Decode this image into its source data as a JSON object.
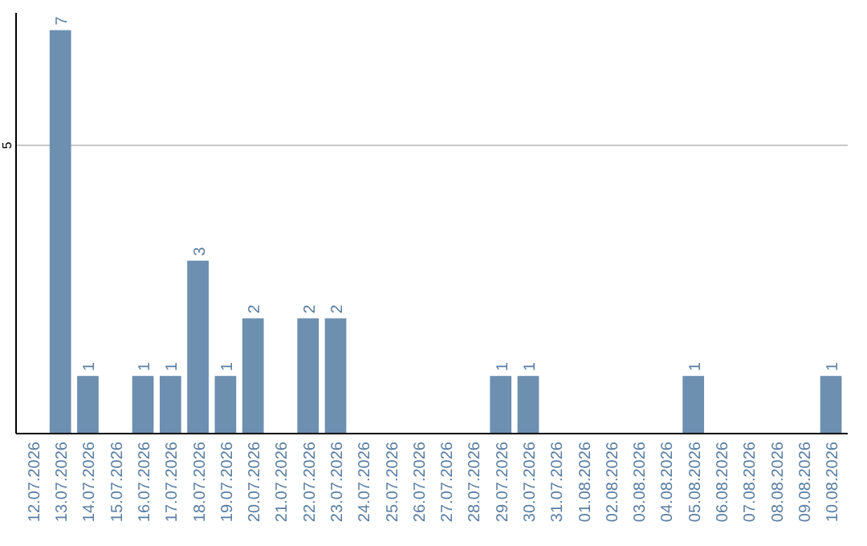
{
  "chart_data": {
    "type": "bar",
    "categories": [
      "12.07.2026",
      "13.07.2026",
      "14.07.2026",
      "15.07.2026",
      "16.07.2026",
      "17.07.2026",
      "18.07.2026",
      "19.07.2026",
      "20.07.2026",
      "21.07.2026",
      "22.07.2026",
      "23.07.2026",
      "24.07.2026",
      "25.07.2026",
      "26.07.2026",
      "27.07.2026",
      "28.07.2026",
      "29.07.2026",
      "30.07.2026",
      "31.07.2026",
      "01.08.2026",
      "02.08.2026",
      "03.08.2026",
      "04.08.2026",
      "05.08.2026",
      "06.08.2026",
      "07.08.2026",
      "08.08.2026",
      "09.08.2026",
      "10.08.2026"
    ],
    "values": [
      0,
      7,
      1,
      0,
      1,
      1,
      3,
      1,
      2,
      0,
      2,
      2,
      0,
      0,
      0,
      0,
      0,
      1,
      1,
      0,
      0,
      0,
      0,
      0,
      1,
      0,
      0,
      0,
      0,
      1
    ],
    "value_labels": [
      null,
      "7",
      "1",
      null,
      "1",
      "1",
      "3",
      "1",
      "2",
      null,
      "2",
      "2",
      null,
      null,
      null,
      null,
      null,
      "1",
      "1",
      null,
      null,
      null,
      null,
      null,
      "1",
      null,
      null,
      null,
      null,
      "1"
    ],
    "color": "#6d8fb0",
    "ylim": [
      0,
      7.3
    ],
    "yticks": [
      5
    ],
    "grid": "y"
  }
}
